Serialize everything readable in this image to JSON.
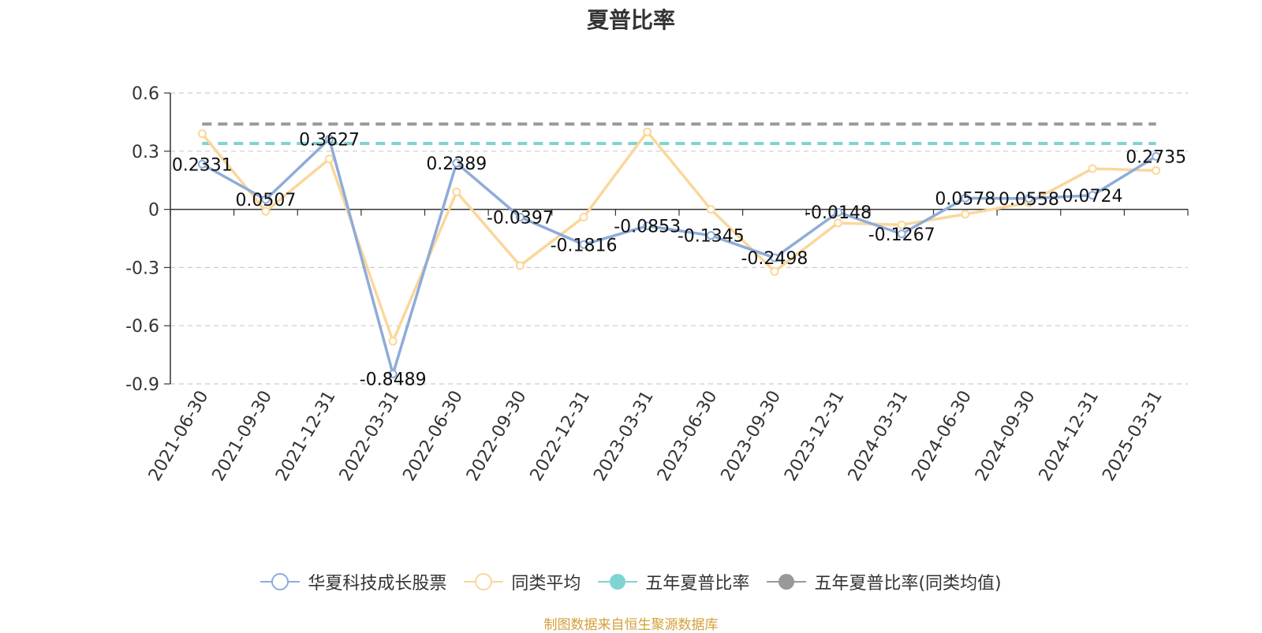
{
  "chart_data": {
    "type": "line",
    "title": "夏普比率",
    "categories": [
      "2021-06-30",
      "2021-09-30",
      "2021-12-31",
      "2022-03-31",
      "2022-06-30",
      "2022-09-30",
      "2022-12-31",
      "2023-03-31",
      "2023-06-30",
      "2023-09-30",
      "2023-12-31",
      "2024-03-31",
      "2024-06-30",
      "2024-09-30",
      "2024-12-31",
      "2025-03-31"
    ],
    "ylim": [
      -0.9,
      0.6
    ],
    "yticks": [
      0.6,
      0.3,
      0,
      -0.3,
      -0.6,
      -0.9
    ],
    "ytick_labels": [
      "0.6",
      "0.3",
      "0",
      "-0.3",
      "-0.6",
      "-0.9"
    ],
    "grid": true,
    "legend_position": "bottom",
    "series": [
      {
        "name": "华夏科技成长股票",
        "color": "#8eacd9",
        "values": [
          0.2331,
          0.0507,
          0.3627,
          -0.8489,
          0.2389,
          -0.0397,
          -0.1816,
          -0.0853,
          -0.1345,
          -0.2498,
          -0.0148,
          -0.1267,
          0.0578,
          0.0558,
          0.0724,
          0.2735
        ],
        "labels": [
          "0.2331",
          "0.0507",
          "0.3627",
          "-0.8489",
          "0.2389",
          "-0.0397",
          "-0.1816",
          "-0.0853",
          "-0.1345",
          "-0.2498",
          "-0.0148",
          "-0.1267",
          "0.0578",
          "0.0558",
          "0.0724",
          "0.2735"
        ]
      },
      {
        "name": "同类平均",
        "color": "#fad79a",
        "values": [
          0.39,
          -0.01,
          0.26,
          -0.68,
          0.09,
          -0.29,
          -0.04,
          0.4,
          0.0,
          -0.32,
          -0.07,
          -0.08,
          -0.025,
          0.035,
          0.21,
          0.2
        ]
      },
      {
        "name": "五年夏普比率",
        "color": "#7fd3d3",
        "style": "dashed-constant",
        "value": 0.34
      },
      {
        "name": "五年夏普比率(同类均值)",
        "color": "#999999",
        "style": "dashed-constant",
        "value": 0.44
      }
    ]
  },
  "legend": {
    "items": [
      {
        "label": "华夏科技成长股票",
        "color": "#8eacd9",
        "marker": "hollow-circle"
      },
      {
        "label": "同类平均",
        "color": "#fad79a",
        "marker": "hollow-circle"
      },
      {
        "label": "五年夏普比率",
        "color": "#7fd3d3",
        "marker": "filled-circle"
      },
      {
        "label": "五年夏普比率(同类均值)",
        "color": "#999999",
        "marker": "filled-circle"
      }
    ]
  },
  "source": "制图数据来自恒生聚源数据库"
}
